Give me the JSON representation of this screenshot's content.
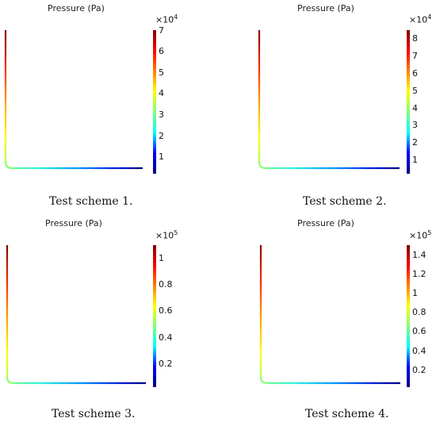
{
  "panels": [
    {
      "title": "Pressure (Pa)",
      "caption": "Test scheme 1.",
      "multiplier_base": "×10",
      "multiplier_exp": "4",
      "ticks": [
        "7",
        "6",
        "5",
        "4",
        "3",
        "2",
        "1"
      ],
      "tick_values": [
        7,
        6,
        5,
        4,
        3,
        2,
        1
      ],
      "range": [
        0.2,
        7.0
      ]
    },
    {
      "title": "Pressure (Pa)",
      "caption": "Test scheme 2.",
      "multiplier_base": "×10",
      "multiplier_exp": "4",
      "ticks": [
        "8",
        "7",
        "6",
        "5",
        "4",
        "3",
        "2",
        "1"
      ],
      "tick_values": [
        8,
        7,
        6,
        5,
        4,
        3,
        2,
        1
      ],
      "range": [
        0.2,
        8.5
      ]
    },
    {
      "title": "Pressure (Pa)",
      "caption": "Test scheme 3.",
      "multiplier_base": "×10",
      "multiplier_exp": "5",
      "ticks": [
        "1",
        "0.8",
        "0.6",
        "0.4",
        "0.2"
      ],
      "tick_values": [
        1,
        0.8,
        0.6,
        0.4,
        0.2
      ],
      "range": [
        0.02,
        1.1
      ]
    },
    {
      "title": "Pressure (Pa)",
      "caption": "Test scheme 4.",
      "multiplier_base": "×10",
      "multiplier_exp": "5",
      "ticks": [
        "1.4",
        "1.2",
        "1",
        "0.8",
        "0.6",
        "0.4",
        "0.2"
      ],
      "tick_values": [
        1.4,
        1.2,
        1,
        0.8,
        0.6,
        0.4,
        0.2
      ],
      "range": [
        0.02,
        1.5
      ]
    }
  ],
  "colors": {
    "jet": [
      "#00007f",
      "#0000ff",
      "#00ffff",
      "#7fff7f",
      "#ffff00",
      "#ff7f00",
      "#ff0000",
      "#7f0000"
    ]
  }
}
